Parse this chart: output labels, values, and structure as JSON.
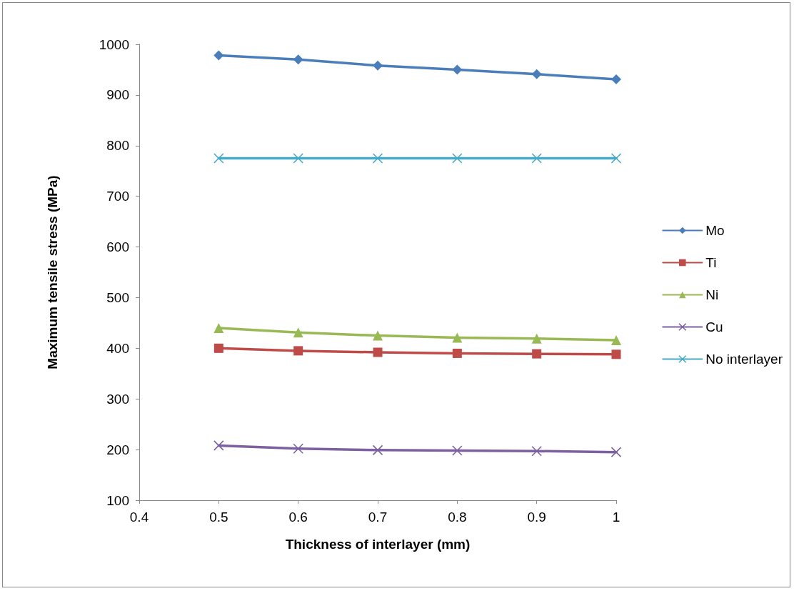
{
  "chart_data": {
    "type": "line",
    "xlabel": "Thickness of interlayer (mm)",
    "ylabel": "Maximum tensile stress (MPa)",
    "x": [
      0.5,
      0.6,
      0.7,
      0.8,
      0.9,
      1
    ],
    "xlim": [
      0.4,
      1
    ],
    "xticks": [
      0.4,
      0.5,
      0.6,
      0.7,
      0.8,
      0.9,
      1
    ],
    "ylim": [
      100,
      1000
    ],
    "yticks": [
      100,
      200,
      300,
      400,
      500,
      600,
      700,
      800,
      900,
      1000
    ],
    "grid": false,
    "legend": "right",
    "line_style": "solid",
    "series": [
      {
        "name": "Mo",
        "color": "#4a7ebb",
        "marker": "diamond",
        "values": [
          978,
          970,
          958,
          950,
          941,
          931
        ]
      },
      {
        "name": "Ti",
        "color": "#be4b48",
        "marker": "square",
        "values": [
          400,
          395,
          392,
          390,
          389,
          388
        ]
      },
      {
        "name": "Ni",
        "color": "#98b954",
        "marker": "triangle",
        "values": [
          440,
          431,
          425,
          421,
          419,
          416
        ]
      },
      {
        "name": "Cu",
        "color": "#7d60a0",
        "marker": "cross",
        "values": [
          208,
          202,
          199,
          198,
          197,
          195
        ]
      },
      {
        "name": "No interlayer",
        "color": "#46aac5",
        "marker": "cross",
        "values": [
          775,
          775,
          775,
          775,
          775,
          775
        ]
      }
    ]
  }
}
